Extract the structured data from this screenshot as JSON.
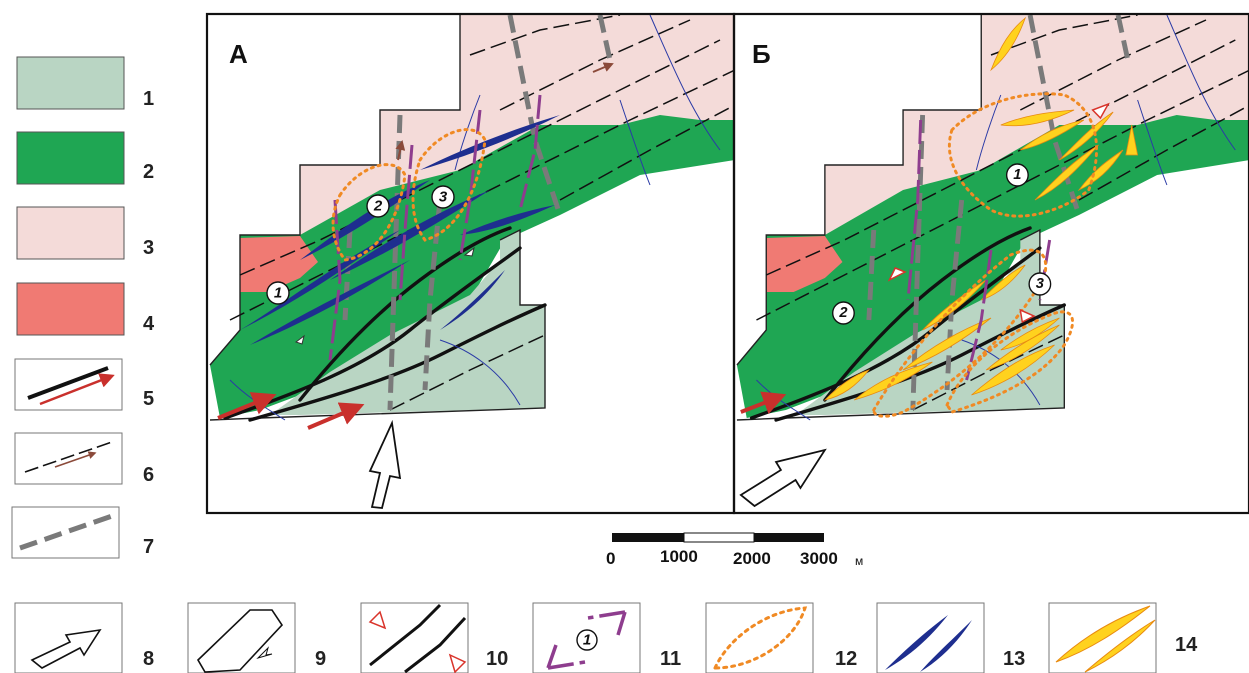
{
  "panels": [
    {
      "title": "А",
      "zones": [
        "1",
        "2",
        "3"
      ]
    },
    {
      "title": "Б",
      "zones": [
        "1",
        "2",
        "3"
      ]
    }
  ],
  "scale_bar": {
    "ticks": [
      "0",
      "1000",
      "2000",
      "3000"
    ],
    "unit": "м"
  },
  "legend": {
    "items": [
      {
        "number": "1",
        "symbol": "light-green-fill",
        "color": "#b9d5c3"
      },
      {
        "number": "2",
        "symbol": "green-fill",
        "color": "#1fa653"
      },
      {
        "number": "3",
        "symbol": "pink-fill",
        "color": "#f4dbd9"
      },
      {
        "number": "4",
        "symbol": "red-fill",
        "color": "#f07a73"
      },
      {
        "number": "5",
        "symbol": "major-fault-with-arrow"
      },
      {
        "number": "6",
        "symbol": "minor-fault-with-arrow"
      },
      {
        "number": "7",
        "symbol": "grey-dashed-fault"
      },
      {
        "number": "8",
        "symbol": "compression-arrow"
      },
      {
        "number": "9",
        "symbol": "block-outline"
      },
      {
        "number": "10",
        "symbol": "extension-faults"
      },
      {
        "number": "11",
        "symbol": "numbered-zone-brackets"
      },
      {
        "number": "12",
        "symbol": "orange-dotted-lens"
      },
      {
        "number": "13",
        "symbol": "blue-lenses",
        "color": "#1e2e8f"
      },
      {
        "number": "14",
        "symbol": "yellow-lenses",
        "color": "#ffd21e"
      }
    ]
  }
}
